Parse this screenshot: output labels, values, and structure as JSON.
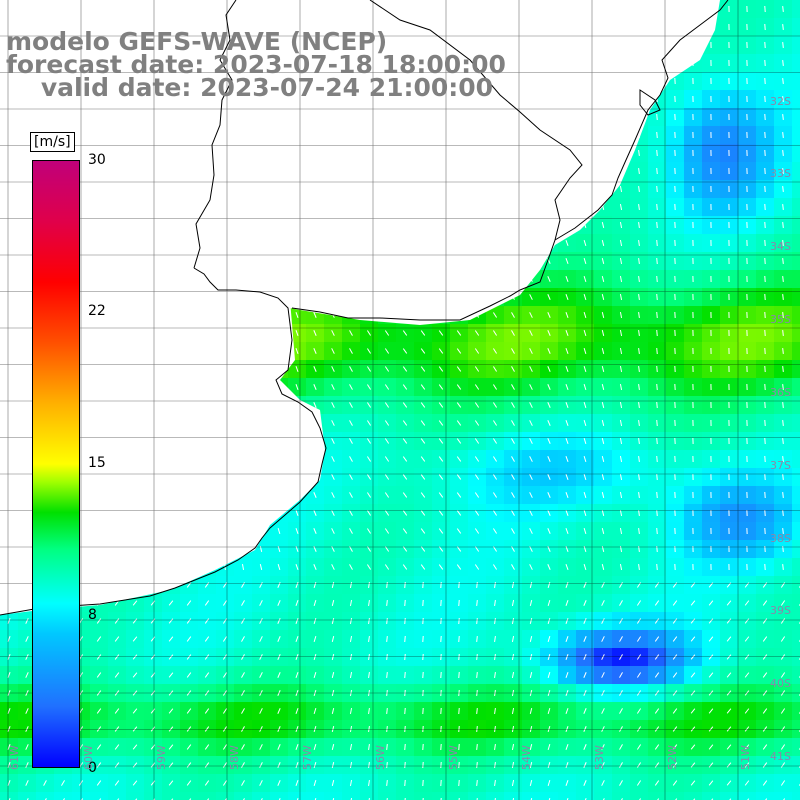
{
  "title": {
    "line1": "modelo GEFS-WAVE (NCEP)",
    "line2": "forecast date: 2023-07-18 18:00:00",
    "line3": "    valid date: 2023-07-24 21:00:00"
  },
  "colorbar": {
    "unit": "[m/s]",
    "ticks": [
      "30",
      "22",
      "15",
      "8",
      "0"
    ],
    "tick_values": [
      30,
      22,
      15,
      8,
      0
    ],
    "range": [
      0,
      30
    ]
  },
  "lat_labels": [
    "32S",
    "33S",
    "34S",
    "35S",
    "36S",
    "37S",
    "38S",
    "39S",
    "40S",
    "41S"
  ],
  "lon_labels": [
    "61W",
    "60W",
    "59W",
    "58W",
    "57W",
    "56W",
    "55W",
    "54W",
    "53W",
    "52W",
    "51W"
  ],
  "colors": {
    "land": "#ffffff",
    "coastline": "#000000",
    "grid": "#000000",
    "arrow": "#ffffff",
    "title": "#808080"
  }
}
